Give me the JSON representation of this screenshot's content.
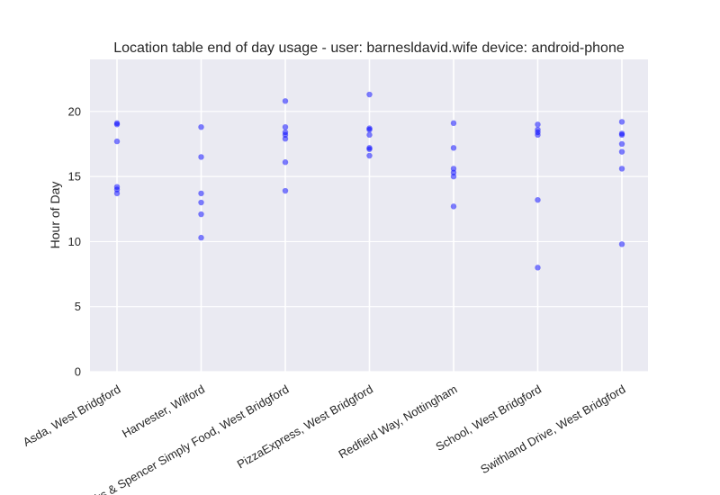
{
  "chart_data": {
    "type": "scatter",
    "title": "Location table end of day usage -  user: barnesldavid.wife device: android-phone",
    "xlabel": "",
    "ylabel": "Hour of Day",
    "ylim": [
      0,
      24
    ],
    "yticks": [
      0,
      5,
      10,
      15,
      20
    ],
    "grid": true,
    "legend": "none",
    "categories": [
      "Asda, West Bridgford",
      "Harvester, Wilford",
      "Marks & Spencer Simply Food, West Bridgford",
      "PizzaExpress, West Bridgford",
      "Redfield Way, Nottingham",
      "School, West Bridgford",
      "Swithland Drive, West Bridgford"
    ],
    "series": [
      {
        "name": "",
        "color": "#0000ff",
        "values": [
          [
            19.1,
            19.0,
            17.7,
            14.2,
            14.0,
            13.7
          ],
          [
            18.8,
            16.5,
            13.7,
            13.0,
            12.1,
            10.3
          ],
          [
            20.8,
            18.8,
            18.4,
            18.2,
            17.9,
            16.1,
            13.9
          ],
          [
            21.3,
            18.7,
            18.6,
            18.2,
            17.2,
            17.1,
            16.6
          ],
          [
            19.1,
            17.2,
            15.6,
            15.3,
            15.0,
            12.7
          ],
          [
            19.0,
            18.6,
            18.4,
            18.2,
            13.2,
            8.0
          ],
          [
            19.2,
            18.3,
            18.2,
            17.5,
            16.9,
            15.6,
            9.8
          ]
        ]
      }
    ]
  },
  "colors": {
    "plot_background": "#eaeaf2",
    "grid": "#ffffff",
    "point": "#0000ff"
  }
}
